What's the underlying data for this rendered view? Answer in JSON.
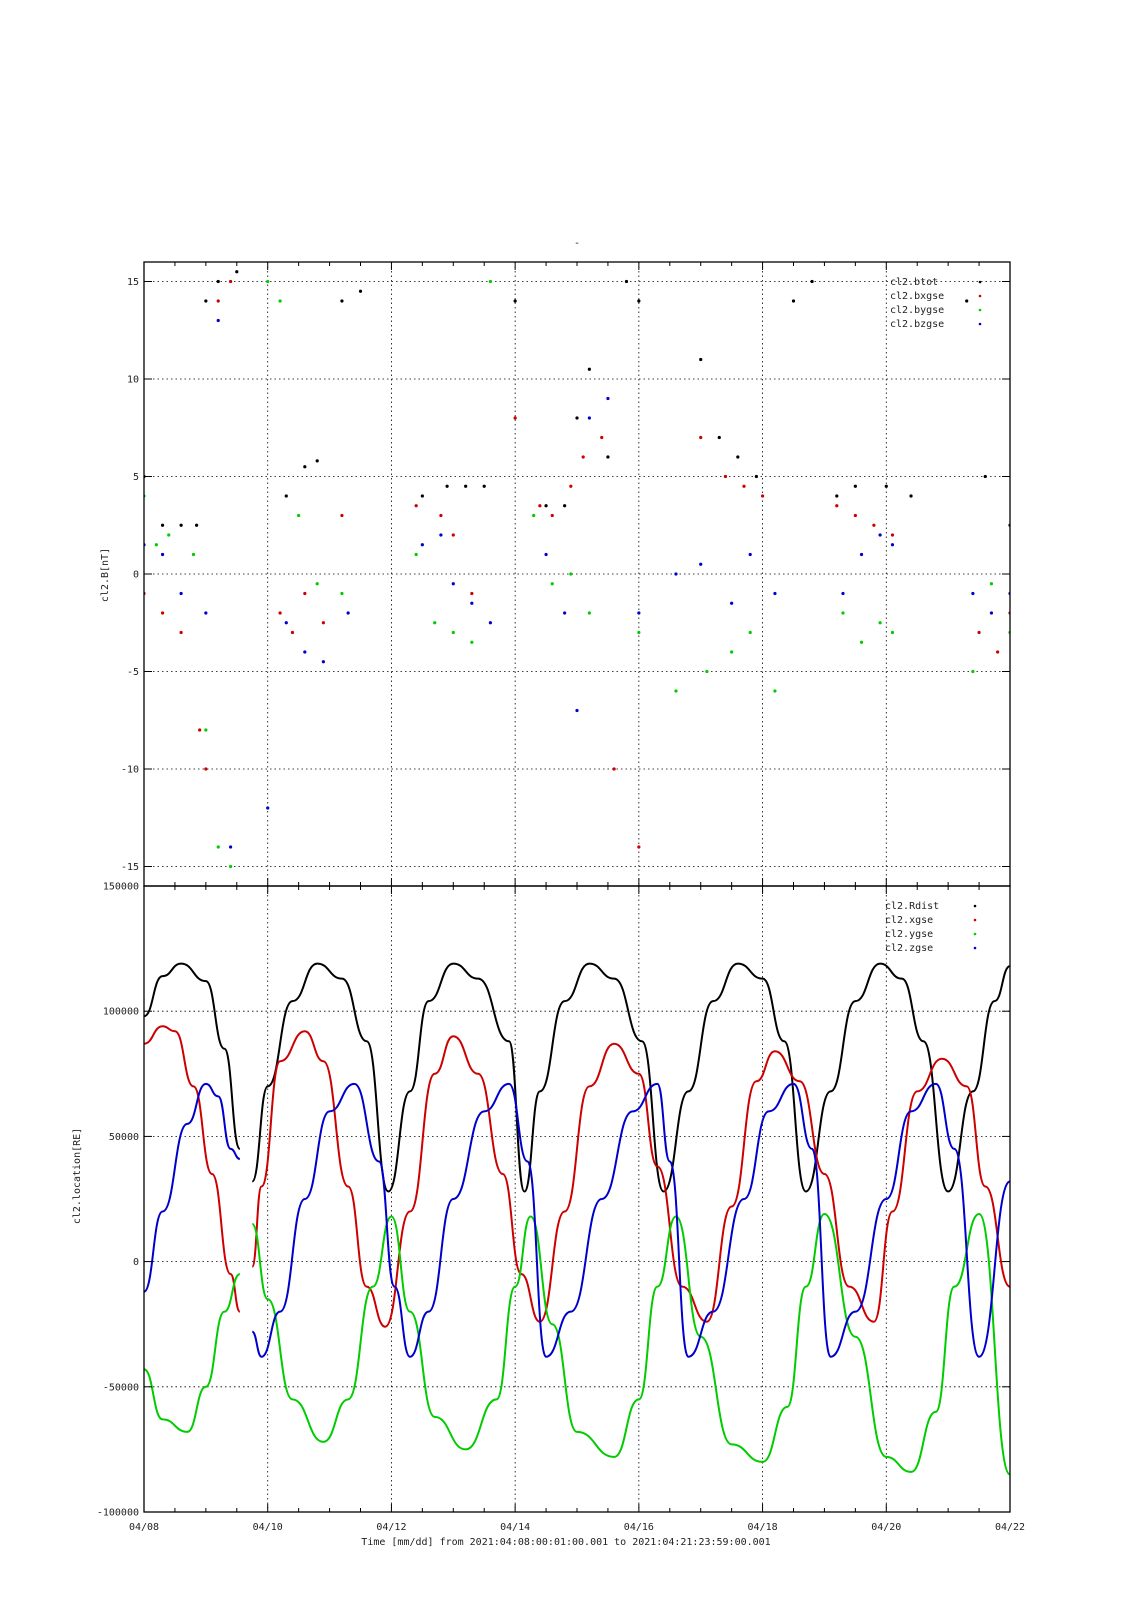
{
  "figure": {
    "top_title": "-",
    "xlabel": "Time [mm/dd]  from 2021:04:08:00:01:00.001  to  2021:04:21:23:59:00.001",
    "x_tick_labels": [
      "04/08",
      "04/10",
      "04/12",
      "04/14",
      "04/16",
      "04/18",
      "04/20",
      "04/22"
    ],
    "x_tick_days": [
      0,
      2,
      4,
      6,
      8,
      10,
      12,
      14
    ],
    "x_range_days": [
      0,
      14
    ]
  },
  "chart_data": [
    {
      "type": "scatter",
      "ylabel": "cl2.B[nT]",
      "ylim": [
        -16,
        16
      ],
      "y_ticks": [
        -15,
        -10,
        -5,
        0,
        5,
        10,
        15
      ],
      "y_tick_labels": [
        "-15",
        "-10",
        "-5",
        "0",
        "5",
        "10",
        "15"
      ],
      "grid": true,
      "legend_position": "top-right",
      "legend": [
        "cl2.btot",
        "cl2.bxgse",
        "cl2.bygse",
        "cl2.bzgse"
      ],
      "colors": [
        "#000000",
        "#cc0000",
        "#00cc00",
        "#0000cc"
      ],
      "data_gap_days": [
        [
          1.55,
          1.85
        ]
      ],
      "series": [
        {
          "name": "cl2.btot",
          "x": [
            0.0,
            0.3,
            0.6,
            0.85,
            1.0,
            1.2,
            1.5,
            2.3,
            2.6,
            2.8,
            3.2,
            3.5,
            4.5,
            4.9,
            5.2,
            5.5,
            6.0,
            6.5,
            6.8,
            7.0,
            7.2,
            7.5,
            7.8,
            8.0,
            9.0,
            9.3,
            9.6,
            9.9,
            10.5,
            10.8,
            11.2,
            11.5,
            12.0,
            12.4,
            13.3,
            13.6,
            14.0
          ],
          "values": [
            5.0,
            2.5,
            2.5,
            2.5,
            14.0,
            15.0,
            15.5,
            4.0,
            5.5,
            5.8,
            14.0,
            14.5,
            4.0,
            4.5,
            4.5,
            4.5,
            14.0,
            3.5,
            3.5,
            8.0,
            10.5,
            6.0,
            15.0,
            14.0,
            11.0,
            7.0,
            6.0,
            5.0,
            14.0,
            15.0,
            4.0,
            4.5,
            4.5,
            4.0,
            14.0,
            5.0,
            2.5
          ]
        },
        {
          "name": "cl2.bxgse",
          "x": [
            0.0,
            0.3,
            0.6,
            0.9,
            1.0,
            1.2,
            1.4,
            2.2,
            2.4,
            2.6,
            2.9,
            3.2,
            4.4,
            4.8,
            5.0,
            5.3,
            6.0,
            6.4,
            6.6,
            6.9,
            7.1,
            7.4,
            7.6,
            8.0,
            9.0,
            9.4,
            9.7,
            10.0,
            11.2,
            11.5,
            11.8,
            12.1,
            13.5,
            13.8,
            14.0
          ],
          "values": [
            -1.0,
            -2.0,
            -3.0,
            -8.0,
            -10.0,
            14.0,
            15.0,
            -2.0,
            -3.0,
            -1.0,
            -2.5,
            3.0,
            3.5,
            3.0,
            2.0,
            -1.0,
            8.0,
            3.5,
            3.0,
            4.5,
            6.0,
            7.0,
            -10.0,
            -14.0,
            7.0,
            5.0,
            4.5,
            4.0,
            3.5,
            3.0,
            2.5,
            2.0,
            -3.0,
            -4.0,
            -2.0
          ]
        },
        {
          "name": "cl2.bygse",
          "x": [
            0.0,
            0.2,
            0.4,
            0.8,
            1.0,
            1.2,
            1.4,
            2.0,
            2.2,
            2.5,
            2.8,
            3.2,
            4.4,
            4.7,
            5.0,
            5.3,
            5.6,
            6.3,
            6.6,
            6.9,
            7.2,
            8.0,
            8.6,
            9.1,
            9.5,
            9.8,
            10.2,
            11.3,
            11.6,
            11.9,
            12.1,
            13.4,
            13.7,
            14.0
          ],
          "values": [
            4.0,
            1.5,
            2.0,
            1.0,
            -8.0,
            -14.0,
            -15.0,
            15.0,
            14.0,
            3.0,
            -0.5,
            -1.0,
            1.0,
            -2.5,
            -3.0,
            -3.5,
            15.0,
            3.0,
            -0.5,
            0.0,
            -2.0,
            -3.0,
            -6.0,
            -5.0,
            -4.0,
            -3.0,
            -6.0,
            -2.0,
            -3.5,
            -2.5,
            -3.0,
            -5.0,
            -0.5,
            -3.0
          ]
        },
        {
          "name": "cl2.bzgse",
          "x": [
            0.0,
            0.3,
            0.6,
            1.0,
            1.2,
            1.4,
            2.0,
            2.3,
            2.6,
            2.9,
            3.3,
            4.5,
            4.8,
            5.0,
            5.3,
            5.6,
            6.5,
            6.8,
            7.0,
            7.2,
            7.5,
            8.0,
            8.6,
            9.0,
            9.5,
            9.8,
            10.2,
            11.3,
            11.6,
            11.9,
            12.1,
            13.4,
            13.7,
            14.0
          ],
          "values": [
            1.5,
            1.0,
            -1.0,
            -2.0,
            13.0,
            -14.0,
            -12.0,
            -2.5,
            -4.0,
            -4.5,
            -2.0,
            1.5,
            2.0,
            -0.5,
            -1.5,
            -2.5,
            1.0,
            -2.0,
            -7.0,
            8.0,
            9.0,
            -2.0,
            0.0,
            0.5,
            -1.5,
            1.0,
            -1.0,
            -1.0,
            1.0,
            2.0,
            1.5,
            -1.0,
            -2.0,
            -1.0
          ]
        }
      ]
    },
    {
      "type": "line",
      "ylabel": "cl2.location[RE]",
      "ylim": [
        -100000,
        150000
      ],
      "y_ticks": [
        -100000,
        -50000,
        0,
        50000,
        100000,
        150000
      ],
      "y_tick_labels": [
        "-100000",
        "-50000",
        "0",
        "50000",
        "100000",
        "150000"
      ],
      "grid": true,
      "legend_position": "top-right",
      "legend": [
        "cl2.Rdist",
        "cl2.xgse",
        "cl2.ygse",
        "cl2.zgse"
      ],
      "colors": [
        "#000000",
        "#cc0000",
        "#00cc00",
        "#0000cc"
      ],
      "data_gap_days": [
        [
          1.55,
          1.75
        ]
      ],
      "series": [
        {
          "name": "cl2.Rdist",
          "x": [
            0.0,
            0.3,
            0.6,
            1.0,
            1.3,
            1.55,
            1.75,
            2.0,
            2.4,
            2.8,
            3.2,
            3.6,
            3.95,
            4.3,
            4.6,
            5.0,
            5.4,
            5.9,
            6.15,
            6.4,
            6.8,
            7.2,
            7.6,
            8.05,
            8.4,
            8.8,
            9.2,
            9.6,
            10.0,
            10.35,
            10.7,
            11.1,
            11.5,
            11.9,
            12.25,
            12.6,
            13.0,
            13.4,
            13.75,
            14.0
          ],
          "values": [
            98000,
            114000,
            119000,
            112000,
            85000,
            45000,
            32000,
            70000,
            104000,
            119000,
            113000,
            88000,
            28000,
            68000,
            104000,
            119000,
            113000,
            88000,
            28000,
            68000,
            104000,
            119000,
            113000,
            88000,
            28000,
            68000,
            104000,
            119000,
            113000,
            88000,
            28000,
            68000,
            104000,
            119000,
            113000,
            88000,
            28000,
            68000,
            104000,
            118000
          ]
        },
        {
          "name": "cl2.xgse",
          "x": [
            0.0,
            0.3,
            0.5,
            0.8,
            1.1,
            1.4,
            1.55,
            1.75,
            1.9,
            2.2,
            2.6,
            2.9,
            3.3,
            3.6,
            3.9,
            4.3,
            4.7,
            5.0,
            5.4,
            5.8,
            6.1,
            6.4,
            6.8,
            7.2,
            7.6,
            8.0,
            8.3,
            8.7,
            9.1,
            9.5,
            9.9,
            10.2,
            10.6,
            11.0,
            11.4,
            11.8,
            12.1,
            12.5,
            12.9,
            13.3,
            13.6,
            14.0
          ],
          "values": [
            87000,
            94000,
            92000,
            70000,
            35000,
            -5000,
            -20000,
            -2000,
            30000,
            80000,
            92000,
            80000,
            30000,
            -10000,
            -26000,
            20000,
            75000,
            90000,
            75000,
            35000,
            -5000,
            -24000,
            20000,
            70000,
            87000,
            75000,
            38000,
            -10000,
            -24000,
            22000,
            72000,
            84000,
            72000,
            35000,
            -10000,
            -24000,
            20000,
            68000,
            81000,
            70000,
            30000,
            -10000
          ]
        },
        {
          "name": "cl2.ygse",
          "x": [
            0.0,
            0.3,
            0.7,
            1.0,
            1.3,
            1.55,
            1.75,
            2.0,
            2.4,
            2.9,
            3.3,
            3.7,
            4.0,
            4.3,
            4.7,
            5.2,
            5.7,
            6.0,
            6.25,
            6.6,
            7.0,
            7.6,
            8.0,
            8.3,
            8.6,
            9.0,
            9.5,
            10.0,
            10.4,
            10.7,
            11.0,
            11.5,
            12.0,
            12.4,
            12.8,
            13.1,
            13.5,
            14.0
          ],
          "values": [
            -43000,
            -63000,
            -68000,
            -50000,
            -20000,
            -5000,
            15000,
            -15000,
            -55000,
            -72000,
            -55000,
            -10000,
            18000,
            -20000,
            -62000,
            -75000,
            -55000,
            -10000,
            18000,
            -25000,
            -68000,
            -78000,
            -55000,
            -10000,
            18000,
            -30000,
            -73000,
            -80000,
            -58000,
            -10000,
            19000,
            -30000,
            -78000,
            -84000,
            -60000,
            -10000,
            19000,
            -85000
          ]
        },
        {
          "name": "cl2.zgse",
          "x": [
            0.0,
            0.3,
            0.7,
            1.0,
            1.2,
            1.4,
            1.55,
            1.75,
            1.9,
            2.2,
            2.6,
            3.0,
            3.4,
            3.8,
            4.05,
            4.3,
            4.6,
            5.0,
            5.5,
            5.9,
            6.2,
            6.5,
            6.9,
            7.4,
            7.9,
            8.3,
            8.5,
            8.8,
            9.2,
            9.7,
            10.1,
            10.5,
            10.8,
            11.1,
            11.5,
            12.0,
            12.4,
            12.8,
            13.1,
            13.5,
            14.0
          ],
          "values": [
            -12000,
            20000,
            55000,
            71000,
            66000,
            45000,
            41000,
            -28000,
            -38000,
            -20000,
            25000,
            60000,
            71000,
            40000,
            -10000,
            -38000,
            -20000,
            25000,
            60000,
            71000,
            40000,
            -38000,
            -20000,
            25000,
            60000,
            71000,
            40000,
            -38000,
            -20000,
            25000,
            60000,
            71000,
            45000,
            -38000,
            -20000,
            25000,
            60000,
            71000,
            45000,
            -38000,
            32000
          ]
        }
      ]
    }
  ]
}
